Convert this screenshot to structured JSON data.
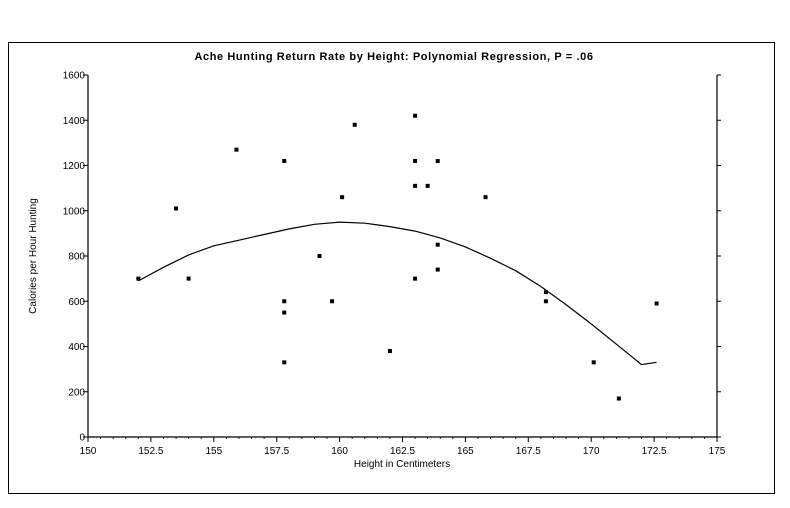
{
  "chart_data": {
    "type": "scatter",
    "title": "Ache Hunting Return Rate by Height: Polynomial Regression, P = .06",
    "xlabel": "Height in Centimeters",
    "ylabel": "Calories per Hour Hunting",
    "xlim": [
      150,
      175
    ],
    "ylim": [
      0,
      1600
    ],
    "xticks": [
      "150",
      "152.5",
      "155",
      "157.5",
      "160",
      "162.5",
      "165",
      "167.5",
      "170",
      "172.5",
      "175"
    ],
    "yticks": [
      "0",
      "200",
      "400",
      "600",
      "800",
      "1000",
      "1200",
      "1400",
      "1600"
    ],
    "grid": false,
    "points": [
      {
        "x": 152.0,
        "y": 700
      },
      {
        "x": 153.5,
        "y": 1010
      },
      {
        "x": 154.0,
        "y": 700
      },
      {
        "x": 155.9,
        "y": 1270
      },
      {
        "x": 157.8,
        "y": 1220
      },
      {
        "x": 157.8,
        "y": 600
      },
      {
        "x": 157.8,
        "y": 550
      },
      {
        "x": 157.8,
        "y": 330
      },
      {
        "x": 159.2,
        "y": 800
      },
      {
        "x": 159.7,
        "y": 600
      },
      {
        "x": 160.1,
        "y": 1060
      },
      {
        "x": 160.6,
        "y": 1380
      },
      {
        "x": 162.0,
        "y": 380
      },
      {
        "x": 163.0,
        "y": 1420
      },
      {
        "x": 163.0,
        "y": 1220
      },
      {
        "x": 163.0,
        "y": 1110
      },
      {
        "x": 163.0,
        "y": 700
      },
      {
        "x": 163.5,
        "y": 1110
      },
      {
        "x": 163.9,
        "y": 1220
      },
      {
        "x": 163.9,
        "y": 850
      },
      {
        "x": 163.9,
        "y": 740
      },
      {
        "x": 165.8,
        "y": 1060
      },
      {
        "x": 168.2,
        "y": 640
      },
      {
        "x": 168.2,
        "y": 600
      },
      {
        "x": 170.1,
        "y": 330
      },
      {
        "x": 171.1,
        "y": 170
      },
      {
        "x": 172.6,
        "y": 590
      }
    ],
    "curve": {
      "x": [
        152.0,
        153.0,
        154.0,
        155.0,
        156.0,
        157.0,
        158.0,
        159.0,
        160.0,
        161.0,
        162.0,
        163.0,
        164.0,
        165.0,
        166.0,
        167.0,
        168.0,
        169.0,
        170.0,
        171.0,
        172.0,
        172.6
      ],
      "y": [
        690,
        750,
        805,
        845,
        870,
        895,
        920,
        940,
        950,
        945,
        930,
        910,
        880,
        840,
        790,
        735,
        665,
        585,
        500,
        410,
        320,
        330
      ]
    }
  }
}
